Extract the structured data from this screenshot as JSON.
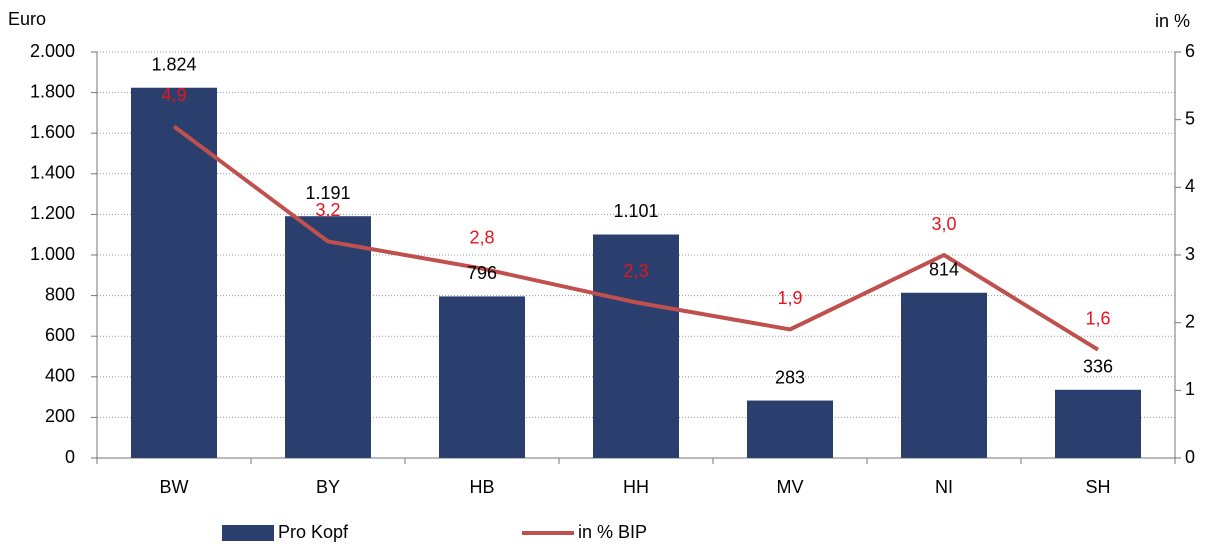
{
  "chart_data": {
    "type": "bar",
    "y_label": "Euro",
    "y2_label": "in %",
    "categories": [
      "BW",
      "BY",
      "HB",
      "HH",
      "MV",
      "NI",
      "SH"
    ],
    "series": [
      {
        "name": "Pro Kopf",
        "type": "bar",
        "color": "#2b3f6e",
        "values": [
          1824,
          1191,
          796,
          1101,
          283,
          814,
          336
        ],
        "value_labels": [
          "1.824",
          "1.191",
          "796",
          "1.101",
          "283",
          "814",
          "336"
        ]
      },
      {
        "name": "in % BIP",
        "type": "line",
        "axis": "y2",
        "color": "#c0504d",
        "label_color": "#e8141c",
        "values": [
          4.9,
          3.2,
          2.8,
          2.3,
          1.9,
          3.0,
          1.6
        ],
        "value_labels": [
          "4,9",
          "3,2",
          "2,8",
          "2,3",
          "1,9",
          "3,0",
          "1,6"
        ]
      }
    ],
    "ylim": [
      0,
      2000
    ],
    "yticks": [
      0,
      200,
      400,
      600,
      800,
      {
        "value": 1000,
        "label": "1.000"
      },
      {
        "value": 1200,
        "label": "1.200"
      },
      {
        "value": 1400,
        "label": "1.400"
      },
      {
        "value": 1600,
        "label": "1.600"
      },
      {
        "value": 1800,
        "label": "1.800"
      },
      {
        "value": 2000,
        "label": "2.000"
      }
    ],
    "y2lim": [
      0,
      6
    ],
    "y2ticks": [
      0,
      1,
      2,
      3,
      4,
      5,
      6
    ],
    "grid": true,
    "legend": "bottom"
  }
}
